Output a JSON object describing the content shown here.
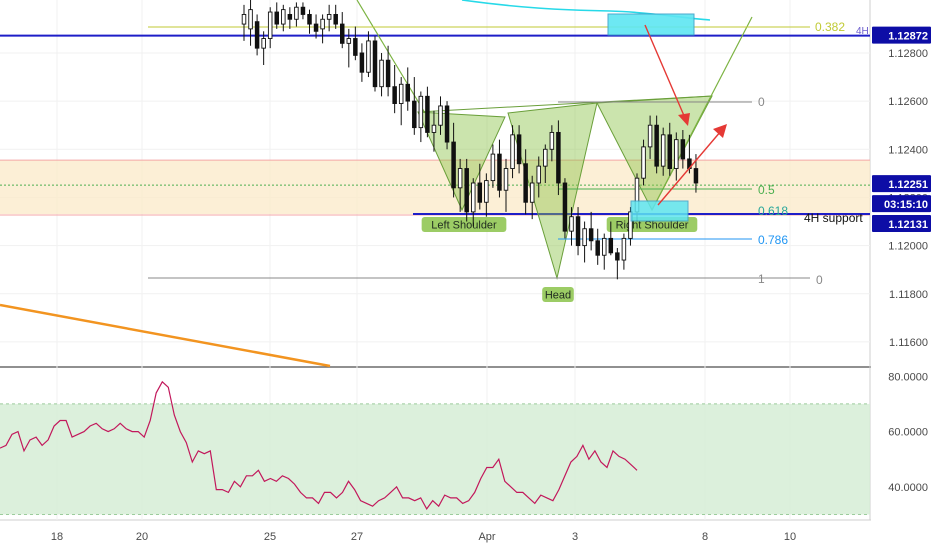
{
  "chart_data": [
    {
      "type": "candlestick",
      "panel": "price",
      "y_axis_ticks": [
        "1.12800",
        "1.12600",
        "1.12400",
        "1.12200",
        "1.12000",
        "1.11800",
        "1.11600"
      ],
      "ylim": [
        1.115,
        1.1302
      ],
      "price_badges": [
        {
          "value": "1.12872",
          "color": "#0d0da6"
        },
        {
          "value": "1.12251",
          "color": "#0d0da6"
        },
        {
          "value": "03:15:10",
          "color": "#0d0da6"
        },
        {
          "value": "1.12131",
          "color": "#0d0da6"
        }
      ],
      "timeframe_tag": "4H",
      "support_label": "4H support",
      "horizontal_lines": [
        {
          "price": 1.12872,
          "color": "#1e1ec8"
        },
        {
          "price": 1.12131,
          "color": "#1e1ec8"
        },
        {
          "price": 1.12251,
          "color": "#4caf50"
        }
      ],
      "zone": {
        "top": 1.12355,
        "bottom": 1.12131,
        "color": "#fbe9c8"
      },
      "fib_levels": [
        {
          "label": "0.382",
          "price": 1.12858,
          "color": "#c0ca33"
        },
        {
          "label": "0",
          "price": 1.1255,
          "color": "#888888"
        },
        {
          "label": "0.5",
          "price": 1.12275,
          "color": "#4caf50"
        },
        {
          "label": "0.618",
          "price": 1.12135,
          "color": "#26a69a"
        },
        {
          "label": "0.786",
          "price": 1.11995,
          "color": "#2196f3"
        },
        {
          "label": "1",
          "price": 1.1185,
          "color": "#888888"
        },
        {
          "label": "0",
          "price": 1.1185,
          "color": "#888888"
        }
      ],
      "pattern_labels": [
        "Left Shoulder",
        "Head",
        "Right Shoulder"
      ],
      "candles": [
        [
          1.1292,
          1.13,
          1.1285,
          1.1296
        ],
        [
          1.129,
          1.1302,
          1.1283,
          1.1298
        ],
        [
          1.1293,
          1.1296,
          1.1279,
          1.1282
        ],
        [
          1.1282,
          1.1289,
          1.1275,
          1.1286
        ],
        [
          1.1286,
          1.1299,
          1.1282,
          1.1297
        ],
        [
          1.1297,
          1.1301,
          1.129,
          1.1292
        ],
        [
          1.1292,
          1.13,
          1.1289,
          1.1298
        ],
        [
          1.1296,
          1.1299,
          1.129,
          1.1294
        ],
        [
          1.1294,
          1.1301,
          1.1291,
          1.1299
        ],
        [
          1.1299,
          1.1301,
          1.1294,
          1.1296
        ],
        [
          1.1296,
          1.1298,
          1.1288,
          1.1292
        ],
        [
          1.1292,
          1.1296,
          1.1286,
          1.1289
        ],
        [
          1.129,
          1.1296,
          1.1284,
          1.1294
        ],
        [
          1.1294,
          1.13,
          1.1289,
          1.1296
        ],
        [
          1.1296,
          1.13,
          1.129,
          1.1292
        ],
        [
          1.1292,
          1.1297,
          1.1282,
          1.1284
        ],
        [
          1.1284,
          1.129,
          1.1274,
          1.1286
        ],
        [
          1.1286,
          1.1291,
          1.1277,
          1.1279
        ],
        [
          1.128,
          1.1284,
          1.1268,
          1.1272
        ],
        [
          1.1272,
          1.1289,
          1.127,
          1.1285
        ],
        [
          1.1285,
          1.1287,
          1.1264,
          1.1266
        ],
        [
          1.1266,
          1.128,
          1.1262,
          1.1277
        ],
        [
          1.1277,
          1.1283,
          1.1262,
          1.1266
        ],
        [
          1.1266,
          1.1275,
          1.1255,
          1.1259
        ],
        [
          1.1259,
          1.127,
          1.125,
          1.1267
        ],
        [
          1.1267,
          1.1274,
          1.1256,
          1.126
        ],
        [
          1.126,
          1.127,
          1.1246,
          1.1249
        ],
        [
          1.1249,
          1.1264,
          1.1243,
          1.1262
        ],
        [
          1.1262,
          1.1266,
          1.1245,
          1.1247
        ],
        [
          1.1247,
          1.1256,
          1.1239,
          1.125
        ],
        [
          1.125,
          1.1262,
          1.1246,
          1.1258
        ],
        [
          1.1258,
          1.126,
          1.124,
          1.1243
        ],
        [
          1.1243,
          1.1251,
          1.122,
          1.1224
        ],
        [
          1.1224,
          1.1236,
          1.1214,
          1.1232
        ],
        [
          1.1232,
          1.1236,
          1.121,
          1.1214
        ],
        [
          1.1214,
          1.1228,
          1.1208,
          1.1226
        ],
        [
          1.1226,
          1.1234,
          1.1215,
          1.1218
        ],
        [
          1.1218,
          1.123,
          1.1212,
          1.1227
        ],
        [
          1.1227,
          1.1242,
          1.1224,
          1.1238
        ],
        [
          1.1238,
          1.1244,
          1.122,
          1.1223
        ],
        [
          1.1223,
          1.1236,
          1.1214,
          1.1232
        ],
        [
          1.1232,
          1.125,
          1.1228,
          1.1246
        ],
        [
          1.1246,
          1.125,
          1.123,
          1.1234
        ],
        [
          1.1234,
          1.124,
          1.1213,
          1.1218
        ],
        [
          1.1218,
          1.1229,
          1.1211,
          1.1226
        ],
        [
          1.1226,
          1.1237,
          1.122,
          1.1233
        ],
        [
          1.1233,
          1.1242,
          1.1226,
          1.124
        ],
        [
          1.124,
          1.125,
          1.1235,
          1.1247
        ],
        [
          1.1247,
          1.1252,
          1.1221,
          1.1226
        ],
        [
          1.1226,
          1.1228,
          1.1203,
          1.1206
        ],
        [
          1.1206,
          1.1216,
          1.12,
          1.1212
        ],
        [
          1.1212,
          1.1216,
          1.1196,
          1.12
        ],
        [
          1.12,
          1.121,
          1.1193,
          1.1207
        ],
        [
          1.1207,
          1.1214,
          1.1198,
          1.1202
        ],
        [
          1.1202,
          1.1207,
          1.1192,
          1.1196
        ],
        [
          1.1196,
          1.1205,
          1.119,
          1.1203
        ],
        [
          1.1203,
          1.121,
          1.1196,
          1.1197
        ],
        [
          1.1197,
          1.1199,
          1.1186,
          1.1194
        ],
        [
          1.1194,
          1.1205,
          1.119,
          1.1203
        ],
        [
          1.1203,
          1.1216,
          1.12,
          1.1214
        ],
        [
          1.1214,
          1.123,
          1.121,
          1.1228
        ],
        [
          1.1228,
          1.1244,
          1.1225,
          1.1241
        ],
        [
          1.1241,
          1.1254,
          1.1236,
          1.125
        ],
        [
          1.125,
          1.1254,
          1.123,
          1.1233
        ],
        [
          1.1233,
          1.1249,
          1.1229,
          1.1246
        ],
        [
          1.1246,
          1.1251,
          1.1229,
          1.1232
        ],
        [
          1.1232,
          1.1247,
          1.1227,
          1.1244
        ],
        [
          1.1244,
          1.1248,
          1.1232,
          1.1236
        ],
        [
          1.1236,
          1.1246,
          1.123,
          1.1232
        ],
        [
          1.1232,
          1.1238,
          1.1222,
          1.1226
        ]
      ],
      "patterns_sma_note": "",
      "extra_lines": {
        "cyan_ma": [],
        "orange_trend": []
      }
    },
    {
      "type": "line",
      "panel": "oscillator",
      "y_axis_ticks": [
        "80.0000",
        "60.0000",
        "40.0000"
      ],
      "ylim": [
        28,
        83
      ],
      "band": [
        30,
        70
      ],
      "series": [
        {
          "values": [
            54,
            55,
            59,
            60,
            53,
            57,
            58,
            55,
            57,
            62,
            64,
            64,
            58,
            59,
            60,
            62,
            63,
            61,
            60,
            61,
            63,
            61,
            60,
            60,
            58,
            64,
            74,
            78,
            76,
            66,
            60,
            56,
            49,
            53,
            52,
            53,
            39,
            39,
            38,
            42,
            40,
            44,
            44,
            46,
            42,
            43,
            42,
            44,
            43,
            41,
            38,
            36,
            36,
            34,
            38,
            38,
            36,
            38,
            42,
            39,
            35,
            34,
            33,
            35,
            36,
            38,
            40,
            36,
            36,
            35,
            36,
            32,
            35,
            33,
            37,
            36,
            36,
            34,
            35,
            38,
            43,
            47,
            47,
            50,
            42,
            40,
            38,
            38,
            36,
            34,
            37,
            36,
            35,
            39,
            44,
            49,
            51,
            55,
            50,
            53,
            49,
            47,
            53,
            51,
            50,
            48,
            46
          ]
        }
      ]
    }
  ],
  "x_axis": {
    "labels": [
      "18",
      "20",
      "25",
      "27",
      "Apr",
      "3",
      "8",
      "10"
    ]
  }
}
